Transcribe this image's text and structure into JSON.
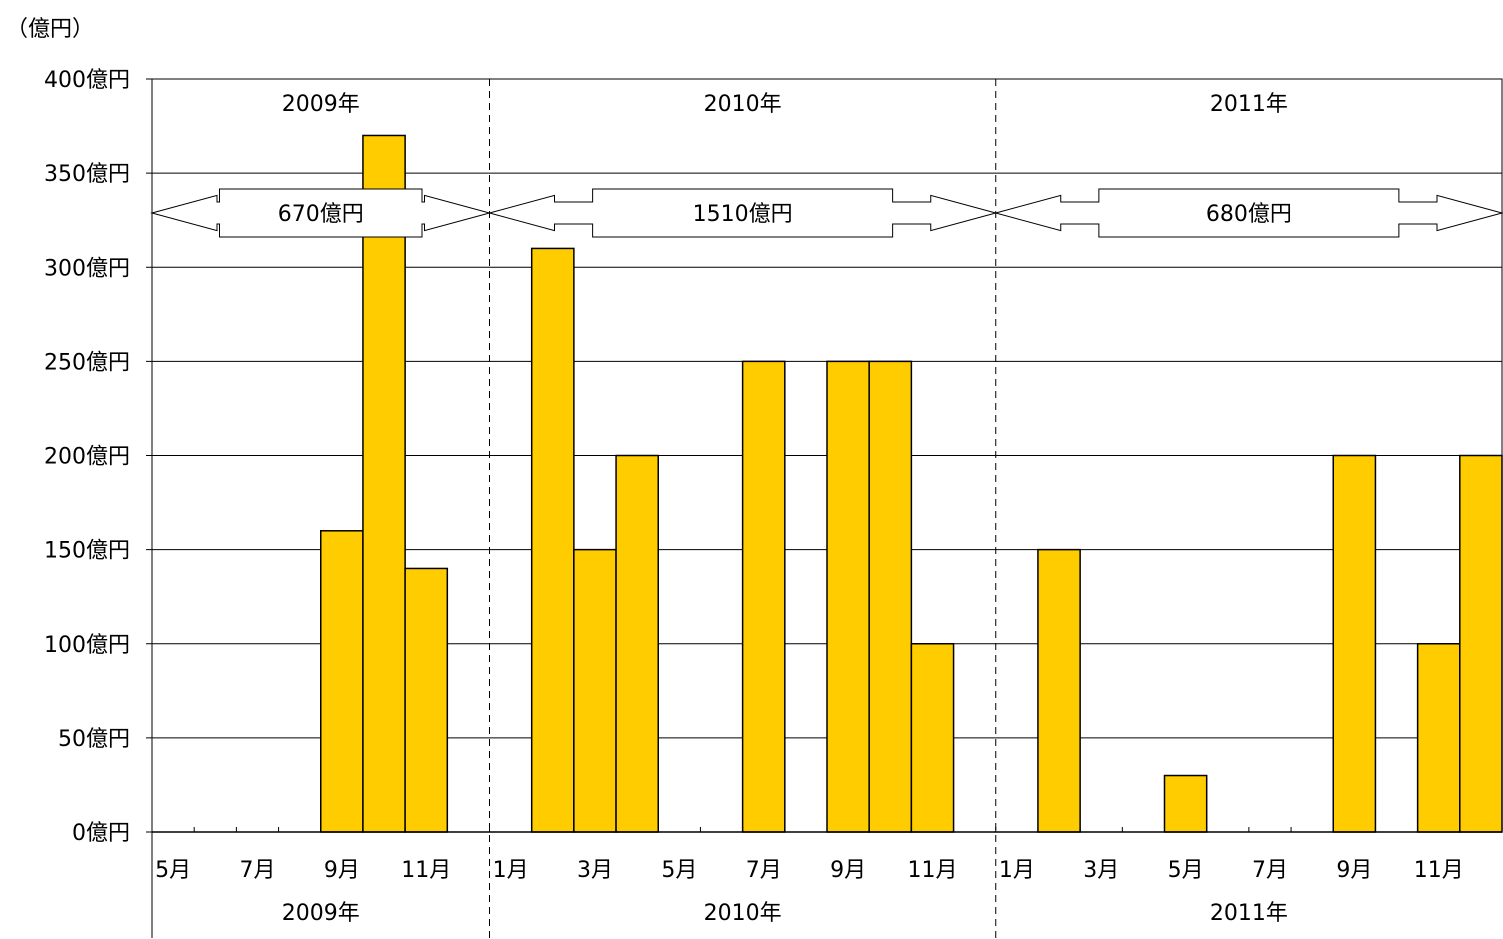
{
  "chart_data": {
    "type": "bar",
    "unit_label": "（億円）",
    "ylim": [
      0,
      400
    ],
    "y_ticks": [
      {
        "value": 0,
        "label": "0億円"
      },
      {
        "value": 50,
        "label": "50億円"
      },
      {
        "value": 100,
        "label": "100億円"
      },
      {
        "value": 150,
        "label": "150億円"
      },
      {
        "value": 200,
        "label": "200億円"
      },
      {
        "value": 250,
        "label": "250億円"
      },
      {
        "value": 300,
        "label": "300億円"
      },
      {
        "value": 350,
        "label": "350億円"
      },
      {
        "value": 400,
        "label": "400億円"
      }
    ],
    "grid": true,
    "bar_color": "#FFCC00",
    "categories": [
      "2009-05",
      "2009-06",
      "2009-07",
      "2009-08",
      "2009-09",
      "2009-10",
      "2009-11",
      "2009-12",
      "2010-01",
      "2010-02",
      "2010-03",
      "2010-04",
      "2010-05",
      "2010-06",
      "2010-07",
      "2010-08",
      "2010-09",
      "2010-10",
      "2010-11",
      "2010-12",
      "2011-01",
      "2011-02",
      "2011-03",
      "2011-04",
      "2011-05",
      "2011-06",
      "2011-07",
      "2011-08",
      "2011-09",
      "2011-10",
      "2011-11",
      "2011-12"
    ],
    "x_tick_labels": [
      "5月",
      "",
      "7月",
      "",
      "9月",
      "",
      "11月",
      "",
      "1月",
      "",
      "3月",
      "",
      "5月",
      "",
      "7月",
      "",
      "9月",
      "",
      "11月",
      "",
      "1月",
      "",
      "3月",
      "",
      "5月",
      "",
      "7月",
      "",
      "9月",
      "",
      "11月",
      ""
    ],
    "values": [
      0,
      0,
      0,
      0,
      160,
      370,
      140,
      0,
      0,
      310,
      150,
      200,
      0,
      0,
      250,
      0,
      250,
      250,
      100,
      0,
      0,
      150,
      0,
      0,
      30,
      0,
      0,
      0,
      200,
      0,
      100,
      200
    ],
    "years": [
      {
        "label": "2009年",
        "total": "670億円"
      },
      {
        "label": "2010年",
        "total": "1510億円"
      },
      {
        "label": "2011年",
        "total": "680億円"
      }
    ]
  }
}
